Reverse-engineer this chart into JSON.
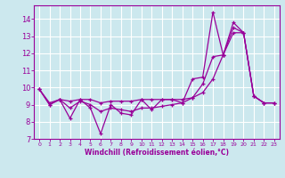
{
  "xlabel": "Windchill (Refroidissement éolien,°C)",
  "x": [
    0,
    1,
    2,
    3,
    4,
    5,
    6,
    7,
    8,
    9,
    10,
    11,
    12,
    13,
    14,
    15,
    16,
    17,
    18,
    19,
    20,
    21,
    22,
    23
  ],
  "line1": [
    9.9,
    9.0,
    9.3,
    8.2,
    9.3,
    8.8,
    7.3,
    9.0,
    8.5,
    8.4,
    9.3,
    8.7,
    9.3,
    9.3,
    9.1,
    10.5,
    10.6,
    14.4,
    11.9,
    13.8,
    13.2,
    9.5,
    9.1,
    9.1
  ],
  "line2": [
    9.9,
    9.0,
    9.3,
    8.8,
    9.2,
    9.0,
    8.6,
    8.8,
    8.7,
    8.6,
    8.8,
    8.8,
    8.9,
    9.0,
    9.1,
    9.4,
    10.2,
    11.8,
    11.9,
    13.5,
    13.2,
    9.5,
    9.1,
    9.1
  ],
  "line3": [
    9.9,
    9.1,
    9.3,
    9.2,
    9.3,
    9.3,
    9.1,
    9.2,
    9.2,
    9.2,
    9.3,
    9.3,
    9.3,
    9.3,
    9.3,
    9.4,
    9.7,
    10.5,
    11.9,
    13.2,
    13.2,
    9.5,
    9.1,
    9.1
  ],
  "color": "#990099",
  "bg_color": "#cce8ee",
  "grid_color": "#ffffff",
  "ylim": [
    7,
    14.8
  ],
  "yticks": [
    7,
    8,
    9,
    10,
    11,
    12,
    13,
    14
  ],
  "xlim": [
    -0.5,
    23.5
  ]
}
